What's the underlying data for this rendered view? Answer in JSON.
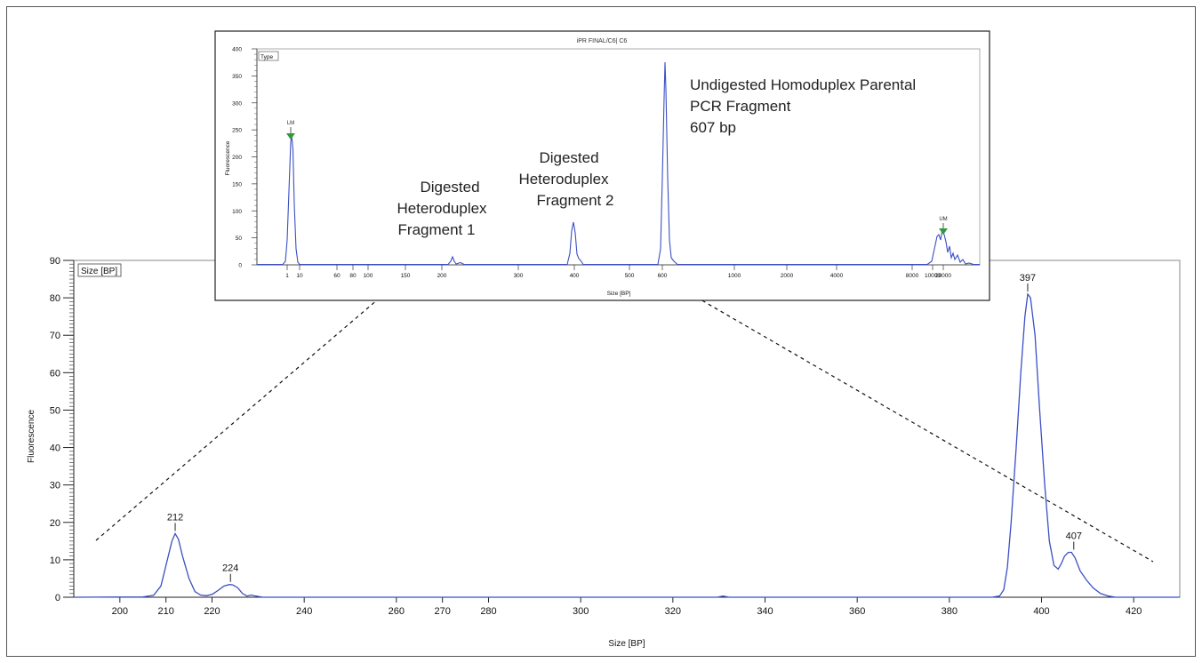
{
  "chart_data": [
    {
      "type": "line",
      "role": "main",
      "x_label": "Size [BP]",
      "y_label": "Fluorescence",
      "legend_box": "Size [BP]",
      "ylim": [
        0,
        90
      ],
      "y_ticks": [
        0,
        10,
        20,
        30,
        40,
        50,
        60,
        70,
        80,
        90
      ],
      "x_ticks": [
        200,
        210,
        220,
        240,
        260,
        270,
        280,
        300,
        320,
        340,
        360,
        380,
        400,
        420
      ],
      "line_color": "#3b4fc4",
      "series": [
        {
          "points": [
            [
              190.0,
              0.0
            ],
            [
              205.0,
              0.1
            ],
            [
              207.3,
              0.5
            ],
            [
              208.9,
              3.0
            ],
            [
              210.1,
              9.0
            ],
            [
              211.3,
              15.0
            ],
            [
              212.0,
              17.0
            ],
            [
              212.7,
              15.5
            ],
            [
              213.6,
              11.0
            ],
            [
              215.0,
              5.0
            ],
            [
              216.3,
              1.5
            ],
            [
              217.5,
              0.6
            ],
            [
              218.8,
              0.4
            ],
            [
              220.1,
              0.8
            ],
            [
              221.3,
              1.8
            ],
            [
              222.6,
              3.0
            ],
            [
              223.8,
              3.4
            ],
            [
              224.5,
              3.3
            ],
            [
              225.6,
              2.5
            ],
            [
              226.6,
              1.0
            ],
            [
              227.6,
              0.3
            ],
            [
              228.5,
              0.6
            ],
            [
              229.5,
              0.3
            ],
            [
              231.0,
              0.0
            ],
            [
              329.6,
              0.0
            ],
            [
              330.9,
              0.3
            ],
            [
              332.2,
              0.0
            ],
            [
              389.2,
              0.0
            ],
            [
              390.9,
              0.3
            ],
            [
              391.8,
              2.0
            ],
            [
              392.6,
              8.0
            ],
            [
              393.4,
              20.0
            ],
            [
              394.5,
              40.0
            ],
            [
              395.5,
              60.0
            ],
            [
              396.4,
              75.0
            ],
            [
              397.0,
              81.0
            ],
            [
              397.6,
              80.0
            ],
            [
              398.6,
              70.0
            ],
            [
              399.6,
              50.0
            ],
            [
              400.7,
              30.0
            ],
            [
              401.7,
              15.0
            ],
            [
              402.7,
              8.5
            ],
            [
              403.6,
              7.5
            ],
            [
              404.3,
              9.0
            ],
            [
              405.0,
              11.0
            ],
            [
              405.8,
              12.0
            ],
            [
              406.5,
              12.0
            ],
            [
              407.3,
              10.5
            ],
            [
              408.4,
              7.0
            ],
            [
              409.8,
              4.5
            ],
            [
              411.2,
              2.5
            ],
            [
              412.8,
              1.0
            ],
            [
              414.5,
              0.3
            ],
            [
              416.1,
              0.0
            ],
            [
              430.0,
              0.0
            ]
          ]
        }
      ],
      "peak_labels": [
        {
          "text": "212",
          "x": 212,
          "y": 17
        },
        {
          "text": "224",
          "x": 224,
          "y": 3.4
        },
        {
          "text": "397",
          "x": 397,
          "y": 81
        },
        {
          "text": "407",
          "x": 407,
          "y": 12
        }
      ]
    },
    {
      "type": "line",
      "role": "inset",
      "title": "iPR FINAL/C6| C6",
      "x_label": "Size [BP]",
      "y_label": "Fluorescence",
      "legend_box": "Type",
      "ylim": [
        0,
        400
      ],
      "y_ticks": [
        0,
        50,
        100,
        150,
        200,
        250,
        300,
        350,
        400
      ],
      "x_ticks": [
        "1",
        "10",
        "60",
        "80",
        "100",
        "150",
        "200",
        "300",
        "400",
        "500",
        "600",
        "1000",
        "2000",
        "4000",
        "8000",
        "10000",
        "20000"
      ],
      "markers": [
        {
          "text": "LM"
        },
        {
          "text": "UM"
        }
      ],
      "marker_color": "#2e9a3c"
    }
  ],
  "annotations": [
    {
      "lines": [
        "Digested",
        "Heteroduplex",
        "Fragment 1"
      ]
    },
    {
      "lines": [
        "Digested",
        "Heteroduplex",
        "Fragment 2"
      ]
    },
    {
      "lines": [
        "Undigested Homoduplex Parental",
        "PCR Fragment",
        "607 bp"
      ]
    }
  ]
}
